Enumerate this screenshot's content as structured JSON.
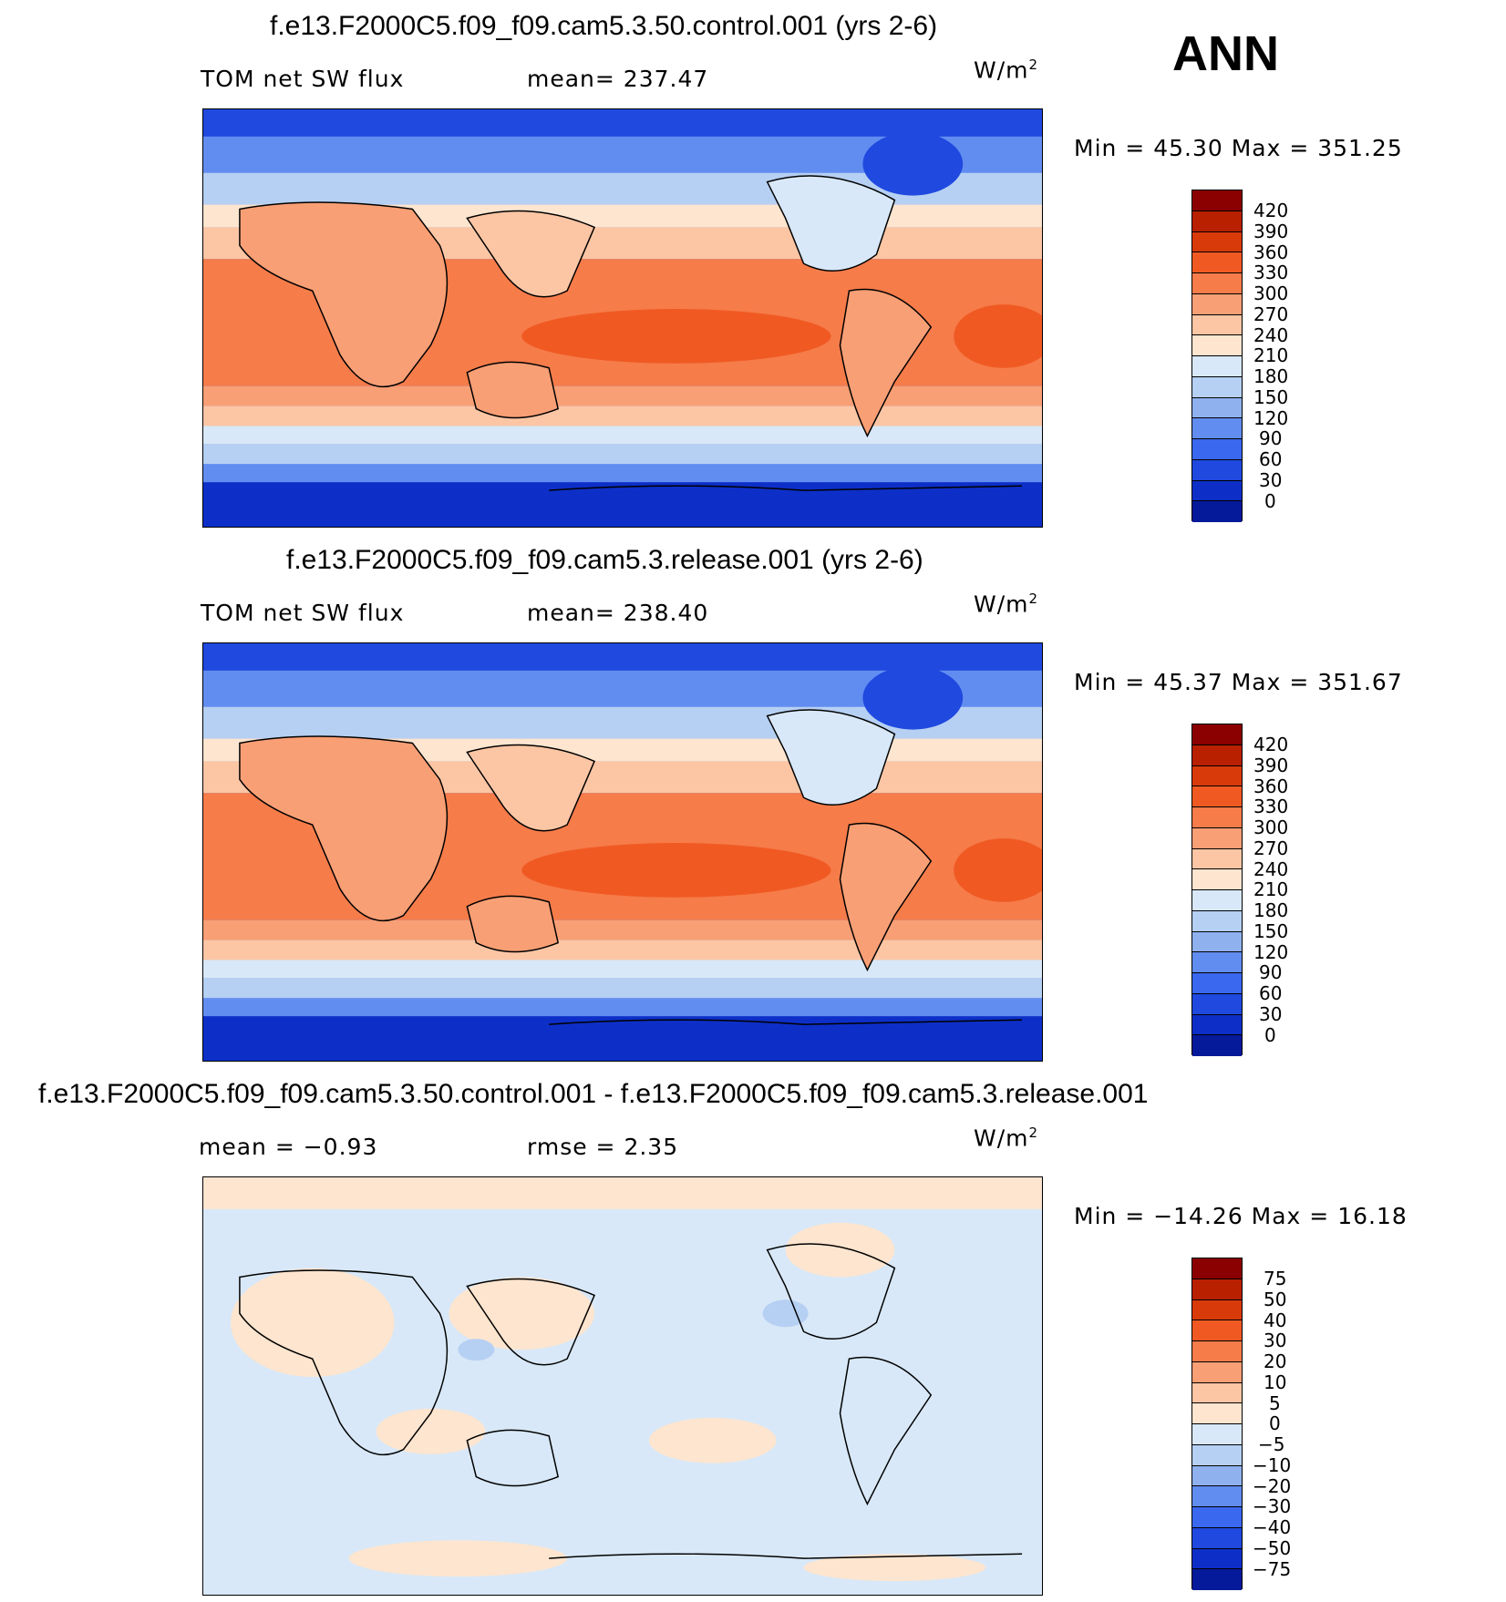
{
  "season": "ANN",
  "units_main": "W/m",
  "units_sup": "2",
  "panels": [
    {
      "title": "f.e13.F2000C5.f09_f09.cam5.3.50.control.001 (yrs 2-6)",
      "left_label": "TOM net SW flux",
      "mid_label": "mean= 237.47",
      "minmax": "Min =   45.30 Max = 351.25"
    },
    {
      "title": "f.e13.F2000C5.f09_f09.cam5.3.release.001 (yrs 2-6)",
      "left_label": "TOM net SW flux",
      "mid_label": "mean= 238.40",
      "minmax": "Min =   45.37 Max = 351.67"
    },
    {
      "title": "f.e13.F2000C5.f09_f09.cam5.3.50.control.001 - f.e13.F2000C5.f09_f09.cam5.3.release.001",
      "left_label": "mean =   −0.93",
      "mid_label": "rmse =    2.35",
      "minmax": "Min = −14.26 Max =   16.18"
    }
  ],
  "colorbar_abs": {
    "labels": [
      "420",
      "390",
      "360",
      "330",
      "300",
      "270",
      "240",
      "210",
      "180",
      "150",
      "120",
      "90",
      "60",
      "30",
      "0"
    ],
    "colors": [
      "#8b0000",
      "#b82000",
      "#d83a0a",
      "#f05a22",
      "#f67c4a",
      "#f99f75",
      "#fcc6a5",
      "#fde5cf",
      "#d8e8f8",
      "#b6d0f3",
      "#8fb2ef",
      "#628df0",
      "#3a68ef",
      "#1f49df",
      "#0d2fc8",
      "#041a9a"
    ]
  },
  "colorbar_diff": {
    "labels": [
      "75",
      "50",
      "40",
      "30",
      "20",
      "10",
      "5",
      "0",
      "−5",
      "−10",
      "−20",
      "−30",
      "−40",
      "−50",
      "−75"
    ],
    "colors": [
      "#8b0000",
      "#b82000",
      "#d83a0a",
      "#f05a22",
      "#f67c4a",
      "#f99f75",
      "#fcc6a5",
      "#fde5cf",
      "#d8e8f8",
      "#b6d0f3",
      "#8fb2ef",
      "#628df0",
      "#3a68ef",
      "#1f49df",
      "#0d2fc8",
      "#041a9a"
    ]
  }
}
